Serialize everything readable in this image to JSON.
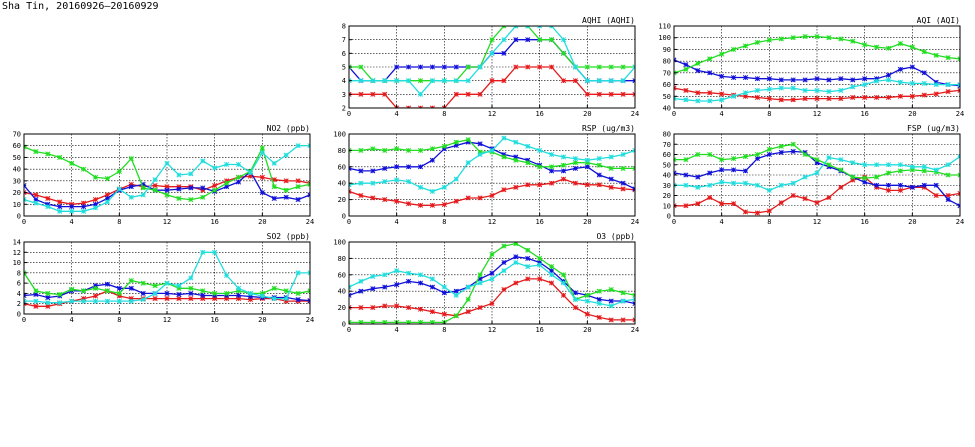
{
  "page_title": "Sha Tin, 20160926–20160929",
  "colors": {
    "red": "#e41a1c",
    "blue": "#1010d8",
    "green": "#22dd22",
    "cyan": "#22dddd"
  },
  "chart_data": [
    {
      "id": "no2",
      "type": "line",
      "title": "NO2 (ppb)",
      "xlim": [
        0,
        24
      ],
      "ylim": [
        0,
        70
      ],
      "xticks": [
        0,
        4,
        8,
        12,
        16,
        20,
        24
      ],
      "yticks": [
        0,
        10,
        20,
        30,
        40,
        50,
        60,
        70
      ],
      "x": [
        0,
        1,
        2,
        3,
        4,
        5,
        6,
        7,
        8,
        9,
        10,
        11,
        12,
        13,
        14,
        15,
        16,
        17,
        18,
        19,
        20,
        21,
        22,
        23,
        24
      ],
      "series": [
        {
          "color": "red",
          "values": [
            20,
            18,
            15,
            12,
            10,
            11,
            14,
            18,
            23,
            27,
            25,
            26,
            25,
            25,
            25,
            22,
            26,
            30,
            33,
            34,
            33,
            31,
            30,
            30,
            28
          ]
        },
        {
          "color": "blue",
          "values": [
            26,
            14,
            10,
            8,
            8,
            8,
            10,
            15,
            22,
            25,
            27,
            22,
            22,
            23,
            24,
            24,
            21,
            25,
            29,
            38,
            20,
            15,
            16,
            14,
            18
          ]
        },
        {
          "color": "green",
          "values": [
            59,
            55,
            53,
            50,
            45,
            40,
            33,
            32,
            38,
            49,
            24,
            22,
            18,
            15,
            14,
            16,
            22,
            28,
            33,
            38,
            58,
            25,
            22,
            25,
            27
          ]
        },
        {
          "color": "cyan",
          "values": [
            14,
            11,
            8,
            4,
            4,
            4,
            7,
            12,
            23,
            16,
            18,
            31,
            45,
            35,
            36,
            47,
            41,
            44,
            44,
            37,
            54,
            45,
            52,
            60,
            60
          ]
        }
      ]
    },
    {
      "id": "so2",
      "type": "line",
      "title": "SO2 (ppb)",
      "xlim": [
        0,
        24
      ],
      "ylim": [
        0,
        14
      ],
      "xticks": [
        0,
        4,
        8,
        12,
        16,
        20,
        24
      ],
      "yticks": [
        0,
        2,
        4,
        6,
        8,
        10,
        12,
        14
      ],
      "x": [
        0,
        1,
        2,
        3,
        4,
        5,
        6,
        7,
        8,
        9,
        10,
        11,
        12,
        13,
        14,
        15,
        16,
        17,
        18,
        19,
        20,
        21,
        22,
        23,
        24
      ],
      "series": [
        {
          "color": "red",
          "values": [
            2,
            1.5,
            1.5,
            2,
            2.5,
            3,
            3.5,
            4.5,
            3.5,
            3,
            3,
            3,
            3,
            3,
            3,
            3,
            3,
            3,
            3,
            2.8,
            3,
            3,
            2.5,
            2.5,
            2.5
          ]
        },
        {
          "color": "blue",
          "values": [
            3.6,
            3.8,
            3.2,
            3.5,
            4.5,
            4.5,
            5.5,
            5.8,
            5,
            5,
            4,
            4,
            4,
            3.8,
            4,
            3.6,
            3.6,
            3.6,
            3.6,
            3.4,
            3.2,
            3.2,
            3.2,
            2.8,
            2.6
          ]
        },
        {
          "color": "green",
          "values": [
            8,
            4.5,
            4,
            3.8,
            4.8,
            4.5,
            5,
            4.5,
            4,
            6.5,
            6,
            5.5,
            6,
            5,
            5,
            4.5,
            4,
            4,
            4.5,
            4,
            4,
            5,
            4.5,
            4,
            4.5
          ]
        },
        {
          "color": "cyan",
          "values": [
            2.5,
            2.5,
            2.2,
            2.2,
            2.5,
            2.5,
            2.5,
            2.5,
            2.5,
            2.5,
            2.8,
            4,
            6,
            5.5,
            7,
            12,
            12,
            7.5,
            5,
            4,
            3.5,
            3,
            3,
            8,
            8
          ]
        }
      ]
    },
    {
      "id": "aqhi",
      "type": "line",
      "title": "AQHI (AQHI)",
      "xlim": [
        0,
        24
      ],
      "ylim": [
        2,
        8
      ],
      "xticks": [
        0,
        4,
        8,
        12,
        16,
        20,
        24
      ],
      "yticks": [
        2,
        3,
        4,
        5,
        6,
        7,
        8
      ],
      "x": [
        0,
        1,
        2,
        3,
        4,
        5,
        6,
        7,
        8,
        9,
        10,
        11,
        12,
        13,
        14,
        15,
        16,
        17,
        18,
        19,
        20,
        21,
        22,
        23,
        24
      ],
      "series": [
        {
          "color": "red",
          "values": [
            3,
            3,
            3,
            3,
            2,
            2,
            2,
            2,
            2,
            3,
            3,
            3,
            4,
            4,
            5,
            5,
            5,
            5,
            4,
            4,
            3,
            3,
            3,
            3,
            3
          ]
        },
        {
          "color": "blue",
          "values": [
            5,
            4,
            4,
            4,
            5,
            5,
            5,
            5,
            5,
            5,
            5,
            5,
            6,
            6,
            7,
            7,
            7,
            7,
            6,
            5,
            4,
            4,
            4,
            4,
            4
          ]
        },
        {
          "color": "green",
          "values": [
            5,
            5,
            4,
            4,
            4,
            4,
            4,
            4,
            4,
            4,
            5,
            5,
            7,
            8,
            8,
            8,
            7,
            7,
            6,
            5,
            5,
            5,
            5,
            5,
            5
          ]
        },
        {
          "color": "cyan",
          "values": [
            4,
            4,
            4,
            4,
            4,
            4,
            3,
            4,
            4,
            4,
            4,
            5,
            6,
            7,
            8,
            8,
            8,
            8,
            7,
            5,
            4,
            4,
            4,
            4,
            5
          ]
        }
      ]
    },
    {
      "id": "rsp",
      "type": "line",
      "title": "RSP (ug/m3)",
      "xlim": [
        0,
        24
      ],
      "ylim": [
        0,
        100
      ],
      "xticks": [
        0,
        4,
        8,
        12,
        16,
        20,
        24
      ],
      "yticks": [
        0,
        20,
        40,
        60,
        80,
        100
      ],
      "x": [
        0,
        1,
        2,
        3,
        4,
        5,
        6,
        7,
        8,
        9,
        10,
        11,
        12,
        13,
        14,
        15,
        16,
        17,
        18,
        19,
        20,
        21,
        22,
        23,
        24
      ],
      "series": [
        {
          "color": "red",
          "values": [
            30,
            25,
            22,
            20,
            18,
            15,
            13,
            13,
            14,
            18,
            22,
            22,
            25,
            32,
            35,
            38,
            38,
            40,
            45,
            40,
            38,
            38,
            35,
            33,
            32
          ]
        },
        {
          "color": "blue",
          "values": [
            58,
            55,
            55,
            58,
            60,
            60,
            60,
            68,
            82,
            86,
            90,
            88,
            82,
            75,
            72,
            68,
            62,
            55,
            55,
            58,
            60,
            50,
            45,
            40,
            33
          ]
        },
        {
          "color": "green",
          "values": [
            80,
            80,
            82,
            80,
            82,
            80,
            80,
            82,
            85,
            90,
            93,
            78,
            78,
            72,
            68,
            65,
            60,
            60,
            62,
            65,
            65,
            62,
            58,
            58,
            58
          ]
        },
        {
          "color": "cyan",
          "values": [
            38,
            40,
            40,
            42,
            44,
            42,
            35,
            30,
            35,
            45,
            65,
            75,
            80,
            95,
            90,
            85,
            80,
            75,
            72,
            70,
            68,
            70,
            72,
            75,
            80
          ]
        }
      ]
    },
    {
      "id": "o3",
      "type": "line",
      "title": "O3 (ppb)",
      "xlim": [
        0,
        24
      ],
      "ylim": [
        0,
        100
      ],
      "xticks": [
        0,
        4,
        8,
        12,
        16,
        20,
        24
      ],
      "yticks": [
        0,
        20,
        40,
        60,
        80,
        100
      ],
      "x": [
        0,
        1,
        2,
        3,
        4,
        5,
        6,
        7,
        8,
        9,
        10,
        11,
        12,
        13,
        14,
        15,
        16,
        17,
        18,
        19,
        20,
        21,
        22,
        23,
        24
      ],
      "series": [
        {
          "color": "red",
          "values": [
            20,
            20,
            20,
            22,
            22,
            20,
            18,
            15,
            12,
            10,
            15,
            20,
            25,
            42,
            50,
            55,
            55,
            50,
            35,
            20,
            12,
            8,
            5,
            5,
            5
          ]
        },
        {
          "color": "blue",
          "values": [
            35,
            40,
            43,
            45,
            48,
            52,
            50,
            45,
            38,
            40,
            45,
            55,
            62,
            75,
            82,
            80,
            75,
            65,
            52,
            38,
            35,
            30,
            28,
            28,
            25
          ]
        },
        {
          "color": "green",
          "values": [
            2,
            2,
            2,
            2,
            2,
            2,
            2,
            2,
            2,
            10,
            30,
            60,
            85,
            95,
            98,
            90,
            80,
            70,
            60,
            30,
            35,
            40,
            42,
            38,
            35
          ]
        },
        {
          "color": "cyan",
          "values": [
            45,
            52,
            58,
            60,
            65,
            62,
            60,
            55,
            45,
            35,
            45,
            50,
            55,
            65,
            75,
            70,
            72,
            60,
            50,
            30,
            28,
            25,
            22,
            28,
            30
          ]
        }
      ]
    },
    {
      "id": "aqi",
      "type": "line",
      "title": "AQI (AQI)",
      "xlim": [
        0,
        24
      ],
      "ylim": [
        40,
        110
      ],
      "xticks": [
        0,
        4,
        8,
        12,
        16,
        20,
        24
      ],
      "yticks": [
        40,
        50,
        60,
        70,
        80,
        90,
        100,
        110
      ],
      "x": [
        0,
        1,
        2,
        3,
        4,
        5,
        6,
        7,
        8,
        9,
        10,
        11,
        12,
        13,
        14,
        15,
        16,
        17,
        18,
        19,
        20,
        21,
        22,
        23,
        24
      ],
      "series": [
        {
          "color": "red",
          "values": [
            57,
            55,
            53,
            53,
            52,
            51,
            50,
            49,
            48,
            47,
            47,
            48,
            48,
            48,
            48,
            49,
            49,
            49,
            49,
            50,
            50,
            51,
            52,
            54,
            55
          ]
        },
        {
          "color": "blue",
          "values": [
            81,
            77,
            72,
            70,
            67,
            66,
            66,
            65,
            65,
            64,
            64,
            64,
            65,
            64,
            65,
            64,
            65,
            65,
            68,
            73,
            75,
            70,
            62,
            60,
            59
          ]
        },
        {
          "color": "green",
          "values": [
            70,
            73,
            78,
            82,
            86,
            90,
            93,
            96,
            98,
            99,
            100,
            101,
            101,
            100,
            99,
            97,
            94,
            92,
            91,
            95,
            92,
            88,
            85,
            83,
            82
          ]
        },
        {
          "color": "cyan",
          "values": [
            48,
            47,
            46,
            46,
            47,
            50,
            53,
            55,
            56,
            57,
            57,
            55,
            55,
            54,
            55,
            58,
            60,
            63,
            64,
            62,
            61,
            61,
            60,
            60,
            60
          ]
        }
      ]
    },
    {
      "id": "fsp",
      "type": "line",
      "title": "FSP (ug/m3)",
      "xlim": [
        0,
        24
      ],
      "ylim": [
        0,
        80
      ],
      "xticks": [
        0,
        4,
        8,
        12,
        16,
        20,
        24
      ],
      "yticks": [
        0,
        10,
        20,
        30,
        40,
        50,
        60,
        70,
        80
      ],
      "x": [
        0,
        1,
        2,
        3,
        4,
        5,
        6,
        7,
        8,
        9,
        10,
        11,
        12,
        13,
        14,
        15,
        16,
        17,
        18,
        19,
        20,
        21,
        22,
        23,
        24
      ],
      "series": [
        {
          "color": "red",
          "values": [
            10,
            10,
            12,
            18,
            12,
            12,
            4,
            3,
            5,
            13,
            20,
            17,
            13,
            18,
            28,
            35,
            38,
            28,
            25,
            25,
            28,
            28,
            20,
            20,
            22
          ]
        },
        {
          "color": "blue",
          "values": [
            42,
            40,
            38,
            42,
            45,
            45,
            44,
            56,
            60,
            62,
            63,
            62,
            52,
            48,
            44,
            38,
            33,
            30,
            30,
            30,
            28,
            30,
            30,
            16,
            10
          ]
        },
        {
          "color": "green",
          "values": [
            55,
            55,
            60,
            60,
            55,
            56,
            58,
            60,
            65,
            68,
            70,
            60,
            55,
            50,
            45,
            38,
            37,
            38,
            42,
            44,
            45,
            44,
            43,
            40,
            40
          ]
        },
        {
          "color": "cyan",
          "values": [
            30,
            30,
            28,
            30,
            33,
            32,
            32,
            30,
            25,
            30,
            32,
            38,
            42,
            57,
            55,
            52,
            50,
            50,
            50,
            50,
            48,
            48,
            45,
            50,
            58
          ]
        }
      ]
    }
  ]
}
